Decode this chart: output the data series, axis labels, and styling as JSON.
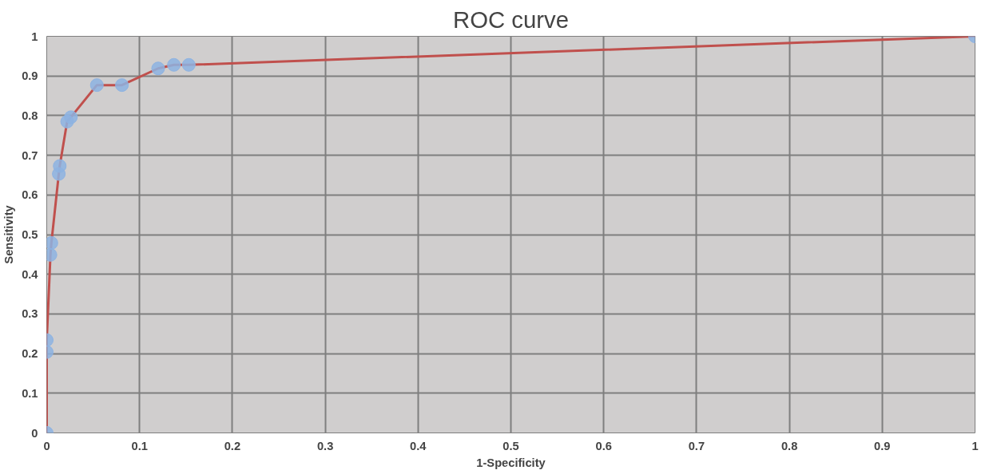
{
  "chart_data": {
    "type": "line",
    "title": "ROC curve",
    "xlabel": "1-Specificity",
    "ylabel": "Sensitivity",
    "x": [
      0,
      0,
      0,
      0.004,
      0.005,
      0.013,
      0.014,
      0.022,
      0.026,
      0.054,
      0.081,
      0.12,
      0.137,
      0.153,
      1
    ],
    "series": [
      {
        "color": "#c0504d",
        "values": [
          0,
          0.204,
          0.234,
          0.449,
          0.479,
          0.653,
          0.673,
          0.785,
          0.796,
          0.877,
          0.877,
          0.919,
          0.928,
          0.928,
          1
        ]
      }
    ],
    "xlim": [
      0,
      1
    ],
    "ylim": [
      0,
      1
    ],
    "xticks": [
      0,
      0.1,
      0.2,
      0.3,
      0.4,
      0.5,
      0.6,
      0.7,
      0.8,
      0.9,
      1
    ],
    "yticks": [
      0,
      0.1,
      0.2,
      0.3,
      0.4,
      0.5,
      0.6,
      0.7,
      0.8,
      0.9,
      1
    ],
    "grid": true,
    "marker": "circle",
    "line_style": "solid"
  }
}
